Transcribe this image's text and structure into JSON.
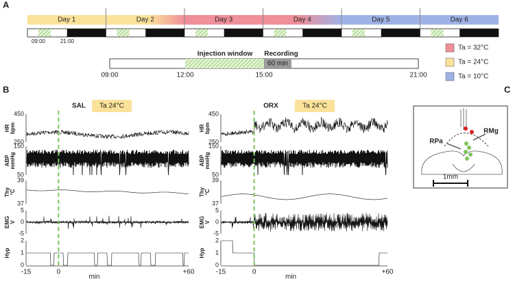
{
  "panel_a": {
    "label": "A",
    "days": [
      "Day 1",
      "Day 2",
      "Day 3",
      "Day 4",
      "Day 5",
      "Day 6"
    ],
    "day_times": [
      "09:00",
      "21:00"
    ],
    "timeline": {
      "window": "Injection window",
      "recording": "Recording",
      "duration": "60 min",
      "ticks": [
        "09:00",
        "12:00",
        "15:00",
        "21:00"
      ]
    },
    "legend": [
      {
        "label": "Ta = 32°C",
        "color": "#ef8f9a"
      },
      {
        "label": "Ta = 24°C",
        "color": "#fbe29a"
      },
      {
        "label": "Ta = 10°C",
        "color": "#9fb2e6"
      }
    ]
  },
  "panel_b": {
    "label": "B",
    "groups": [
      {
        "name": "SAL",
        "condition": "Ta 24°C"
      },
      {
        "name": "ORX",
        "condition": "Ta 24°C"
      }
    ],
    "channels": [
      {
        "label": "HR",
        "unit": "bpm",
        "ticks": [
          "450",
          "250"
        ]
      },
      {
        "label": "ABP",
        "unit": "mmHg",
        "ticks": [
          "150",
          "50"
        ]
      },
      {
        "label": "Thy",
        "unit": "°C",
        "ticks": [
          "39",
          "37"
        ]
      },
      {
        "label": "EMG",
        "unit": "V",
        "ticks": [
          "5",
          "0",
          "-5"
        ]
      },
      {
        "label": "Hyp",
        "ticks": [
          "2",
          "1",
          "0"
        ]
      }
    ],
    "x_ticks": [
      "-15",
      "0",
      "+60"
    ],
    "x_label": "min"
  },
  "panel_c": {
    "label": "C",
    "labels": [
      "RPa",
      "RMg"
    ],
    "scale": "1mm"
  }
}
